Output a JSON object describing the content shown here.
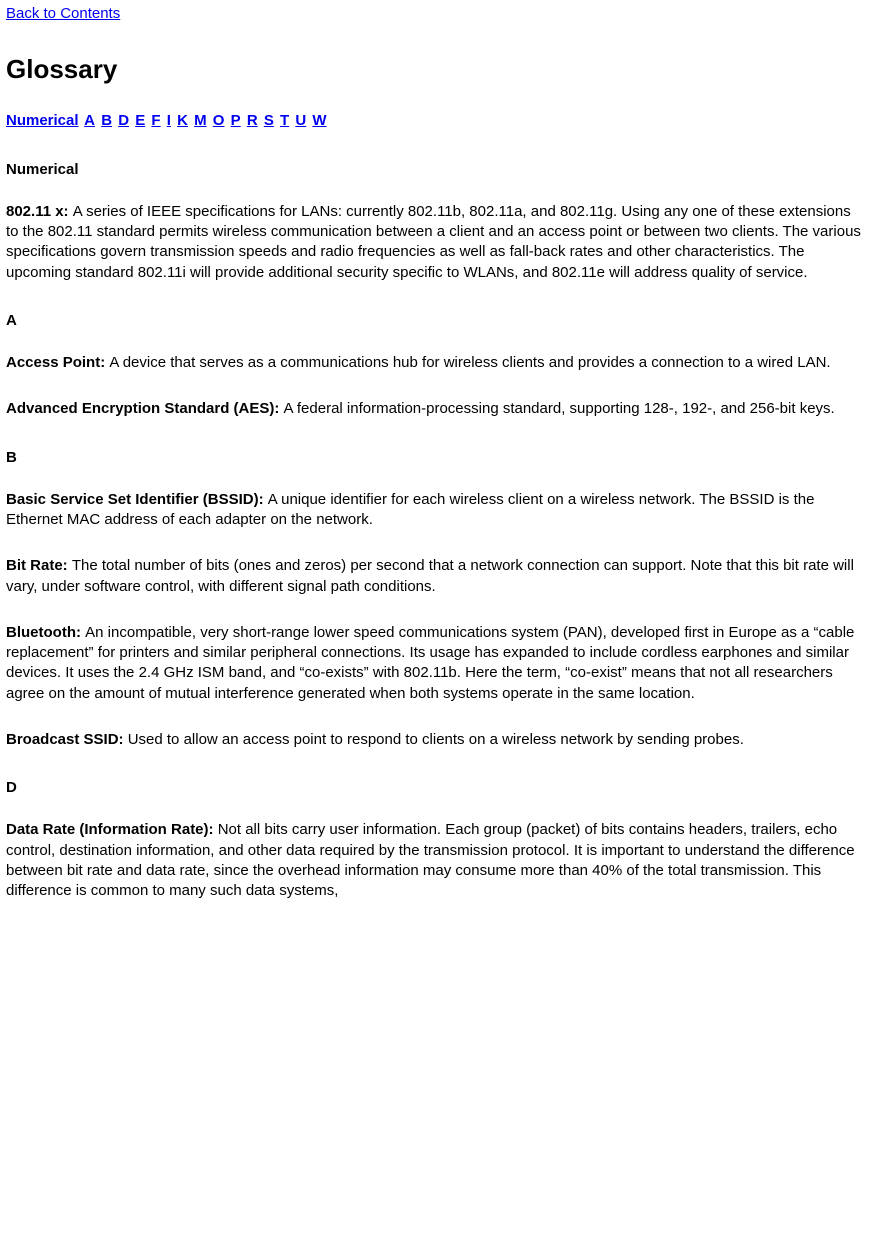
{
  "topLink": "Back to Contents",
  "title": "Glossary",
  "index": [
    "Numerical",
    "A",
    "B",
    "D",
    "E",
    "F",
    "I",
    "K",
    "M",
    "O",
    "P",
    "R",
    "S",
    "T",
    "U",
    "W"
  ],
  "sections": [
    {
      "heading": "Numerical",
      "entries": [
        {
          "term": "802.11 x:",
          "def": "A series of IEEE specifications for LANs: currently 802.11b, 802.11a, and 802.11g. Using any one of these extensions to the 802.11 standard permits wireless communication between a client and an access point or between two clients. The various specifications govern transmission speeds and radio frequencies as well as fall-back rates and other characteristics. The upcoming standard 802.11i will provide additional security specific to WLANs, and 802.11e will address quality of service."
        }
      ]
    },
    {
      "heading": "A",
      "entries": [
        {
          "term": "Access Point:",
          "def": "A device that serves as a communications hub for wireless clients and provides a connection to a wired LAN."
        },
        {
          "term": "Advanced Encryption Standard (AES):",
          "def": "A federal information-processing standard, supporting 128-, 192-, and 256-bit keys."
        }
      ]
    },
    {
      "heading": "B",
      "entries": [
        {
          "term": "Basic Service Set Identifier (BSSID):",
          "def": "A unique identifier for each wireless client on a wireless network. The BSSID is the Ethernet MAC address of each adapter on the network."
        },
        {
          "term": "Bit Rate:",
          "def": "The total number of bits (ones and zeros) per second that a network connection can support. Note that this bit rate will vary, under software control, with different signal path conditions."
        },
        {
          "term": "Bluetooth:",
          "def": "An incompatible, very short-range lower speed communications system (PAN), developed first in Europe as a “cable replacement” for printers and similar peripheral connections. Its usage has expanded to include cordless earphones and similar devices. It uses the 2.4 GHz ISM band, and “co-exists” with 802.11b. Here the term, “co-exist” means that not all researchers agree on the amount of mutual interference generated when both systems operate in the same location."
        },
        {
          "term": "Broadcast SSID:",
          "def": "Used to allow an access point to respond to clients on a wireless network by sending probes."
        }
      ]
    },
    {
      "heading": "D",
      "entries": [
        {
          "term": "Data Rate (Information Rate):",
          "def": "Not all bits carry user information. Each group (packet) of bits contains headers, trailers, echo control, destination information, and other data required by the transmission protocol. It is important to understand the difference between bit rate and data rate, since the overhead information may consume more than 40% of the total transmission. This difference is common to many such data systems,"
        }
      ]
    }
  ]
}
